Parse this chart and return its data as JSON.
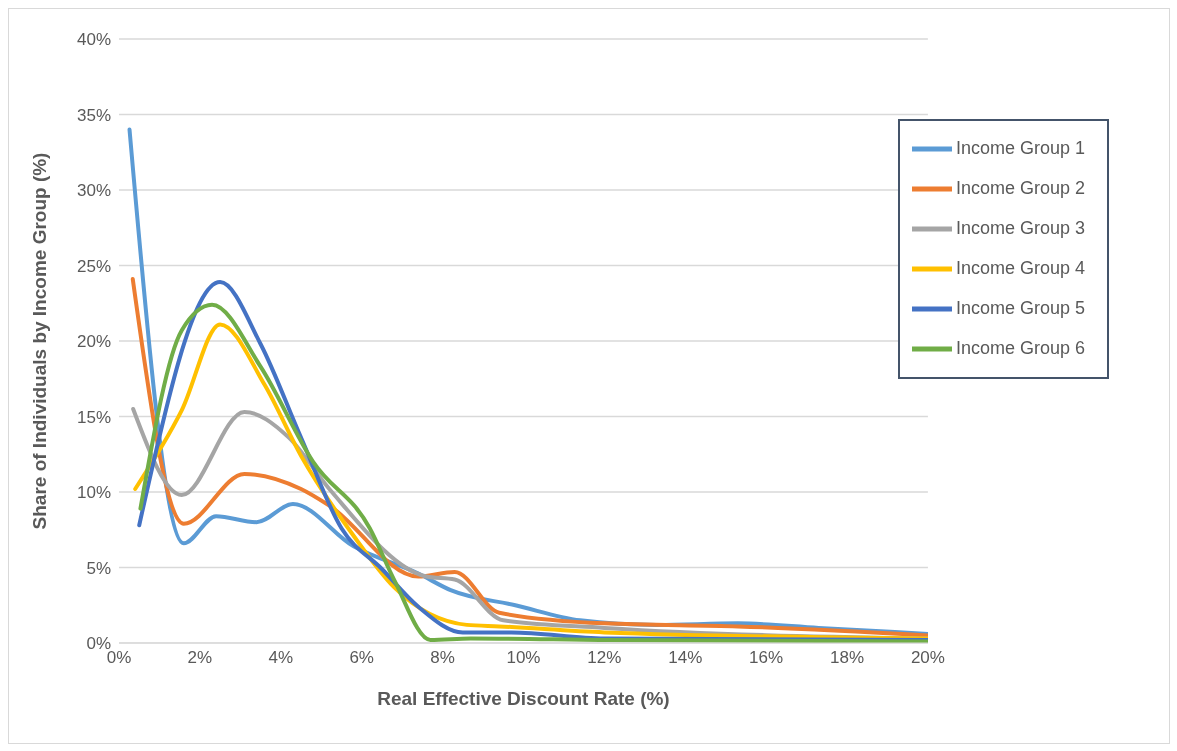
{
  "chart_data": {
    "type": "line",
    "xlabel": "Real Effective Discount Rate (%)",
    "ylabel": "Share of Individuals by Income Group (%)",
    "xlim": [
      0,
      20
    ],
    "ylim": [
      0,
      40
    ],
    "xticks": [
      {
        "value": 0,
        "label": "0%"
      },
      {
        "value": 2,
        "label": "2%"
      },
      {
        "value": 4,
        "label": "4%"
      },
      {
        "value": 6,
        "label": "6%"
      },
      {
        "value": 8,
        "label": "8%"
      },
      {
        "value": 10,
        "label": "10%"
      },
      {
        "value": 12,
        "label": "12%"
      },
      {
        "value": 14,
        "label": "14%"
      },
      {
        "value": 16,
        "label": "16%"
      },
      {
        "value": 18,
        "label": "18%"
      },
      {
        "value": 20,
        "label": "20%"
      }
    ],
    "yticks": [
      {
        "value": 0,
        "label": "0%"
      },
      {
        "value": 5,
        "label": "5%"
      },
      {
        "value": 10,
        "label": "10%"
      },
      {
        "value": 15,
        "label": "15%"
      },
      {
        "value": 20,
        "label": "20%"
      },
      {
        "value": 25,
        "label": "25%"
      },
      {
        "value": 30,
        "label": "30%"
      },
      {
        "value": 35,
        "label": "35%"
      },
      {
        "value": 40,
        "label": "40%"
      }
    ],
    "grid": "y",
    "legend": "top right",
    "marker": "none",
    "line_style": "solid",
    "series": [
      {
        "name": "Income Group 1",
        "color": "#5b9bd5",
        "x": [
          0.26,
          1.6,
          2.4,
          3.4,
          4.3,
          5.8,
          7.4,
          8.2,
          9.8,
          11.4,
          13.3,
          15.3,
          17.3,
          20
        ],
        "values": [
          34.0,
          6.6,
          8.4,
          8.0,
          9.2,
          6.4,
          4.6,
          3.5,
          2.5,
          1.5,
          1.2,
          1.3,
          1.0,
          0.6
        ]
      },
      {
        "name": "Income Group 2",
        "color": "#ed7d31",
        "x": [
          0.34,
          1.6,
          3.1,
          4.5,
          5.2,
          7.4,
          8.3,
          9.4,
          12,
          15.3,
          20
        ],
        "values": [
          24.1,
          7.9,
          11.2,
          10.2,
          9.1,
          4.4,
          4.7,
          2.0,
          1.3,
          1.1,
          0.5
        ]
      },
      {
        "name": "Income Group 3",
        "color": "#a5a5a5",
        "x": [
          0.35,
          1.55,
          3.1,
          4.2,
          5.2,
          7.6,
          8.3,
          9.5,
          12,
          20
        ],
        "values": [
          15.5,
          9.8,
          15.3,
          13.6,
          10.2,
          4.4,
          4.2,
          1.5,
          1.0,
          0.3
        ]
      },
      {
        "name": "Income Group 4",
        "color": "#ffc000",
        "x": [
          0.4,
          1.55,
          2.5,
          3.6,
          4.5,
          5.8,
          6.8,
          8.6,
          9.4,
          12,
          20
        ],
        "values": [
          10.2,
          15.4,
          21.1,
          17.1,
          12.4,
          7.1,
          3.7,
          1.2,
          1.1,
          0.7,
          0.3
        ]
      },
      {
        "name": "Income Group 5",
        "color": "#4472c4",
        "x": [
          0.5,
          2.5,
          3.5,
          4.5,
          5.5,
          6.5,
          7.4,
          8.5,
          9.7,
          12,
          20
        ],
        "values": [
          7.8,
          23.9,
          19.8,
          13.6,
          7.6,
          4.9,
          2.4,
          0.7,
          0.7,
          0.3,
          0.2
        ]
      },
      {
        "name": "Income Group 6",
        "color": "#70ad47",
        "x": [
          0.53,
          1.55,
          2.3,
          3.5,
          4.8,
          6.2,
          6.8,
          7.7,
          8.7,
          12,
          20
        ],
        "values": [
          8.9,
          20.7,
          22.4,
          18.3,
          12.0,
          7.6,
          4.2,
          0.2,
          0.3,
          0.2,
          0.1
        ]
      }
    ]
  }
}
